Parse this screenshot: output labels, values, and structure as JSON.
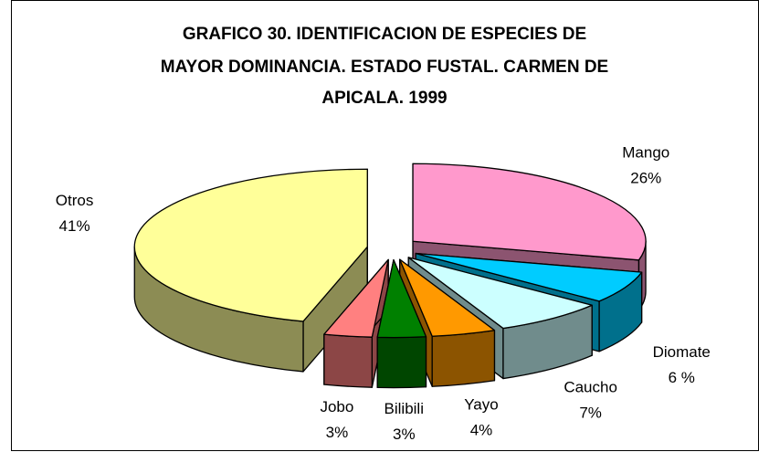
{
  "chart_data": {
    "type": "pie3d",
    "title": [
      "GRAFICO 30.  IDENTIFICACION DE ESPECIES DE",
      "MAYOR DOMINANCIA. ESTADO FUSTAL. CARMEN DE",
      "APICALA. 1999"
    ],
    "categories": [
      "Mango",
      "Diomate",
      "Caucho",
      "Yayo",
      "Bilibili",
      "Jobo",
      "Otros"
    ],
    "values": [
      26,
      6,
      7,
      4,
      3,
      3,
      41
    ],
    "value_labels": [
      "26%",
      "6 %",
      "7%",
      "4%",
      "3%",
      "3%",
      "41%"
    ],
    "colors": [
      "#ff99cc",
      "#00ccff",
      "#ccffff",
      "#ff9900",
      "#008000",
      "#ff8080",
      "#ffff99"
    ]
  }
}
